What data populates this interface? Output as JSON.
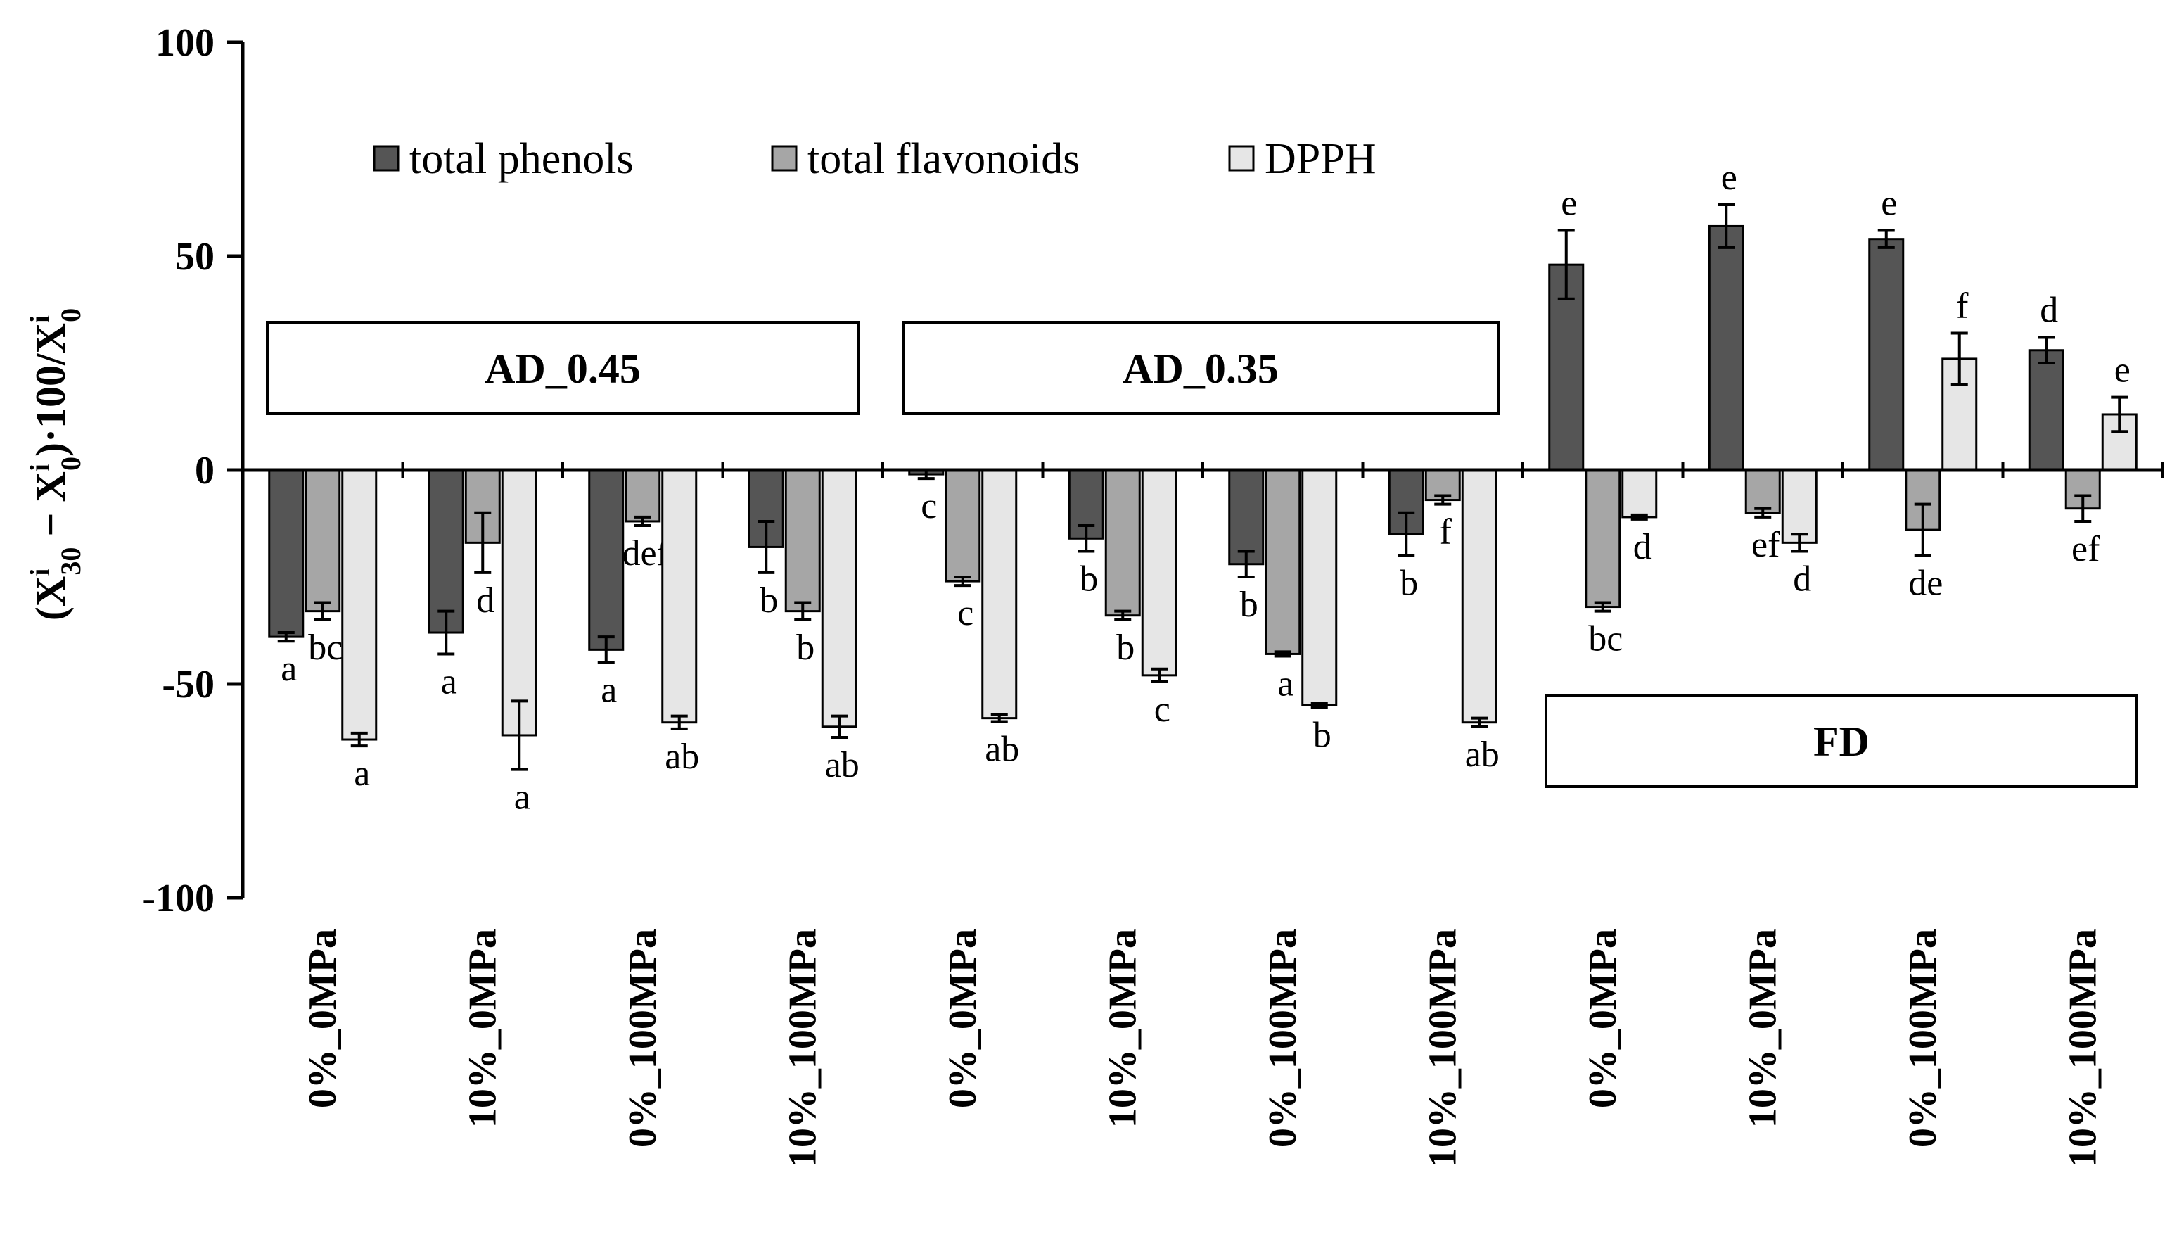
{
  "chart_data": {
    "type": "bar",
    "title": "",
    "xlabel": "",
    "ylabel": {
      "part1": "(X",
      "sup1": "i",
      "sub1": "30",
      "part2": " − X",
      "sup2": "i",
      "sub2": "0",
      "part3": ")·100/X",
      "sup3": "i",
      "sub3": "0"
    },
    "ylim": [
      -100,
      100
    ],
    "yticks": [
      100,
      50,
      0,
      -50,
      -100
    ],
    "ytick_labels": [
      "100",
      "50",
      "0",
      "-50",
      "-100"
    ],
    "categories": [
      "0%_0MPa",
      "10%_0MPa",
      "0%_100MPa",
      "10%_100MPa",
      "0%_0MPa",
      "10%_0MPa",
      "0%_100MPa",
      "10%_100MPa",
      "0%_0MPa",
      "10%_0MPa",
      "0%_100MPa",
      "10%_100MPa"
    ],
    "groups": [
      {
        "label": "AD_0.45",
        "categories": [
          0,
          1,
          2,
          3
        ]
      },
      {
        "label": "AD_0.35",
        "categories": [
          4,
          5,
          6,
          7
        ]
      },
      {
        "label": "FD",
        "categories": [
          8,
          9,
          10,
          11
        ]
      }
    ],
    "legend_position": "top",
    "series": [
      {
        "name": "total phenols",
        "color": "#555555",
        "values": [
          -39,
          -38,
          -42,
          -18,
          -1,
          -16,
          -22,
          -15,
          48,
          57,
          54,
          28
        ],
        "errors": [
          1,
          5,
          3,
          6,
          1,
          3,
          3,
          5,
          8,
          5,
          2,
          3
        ],
        "letters": [
          "a",
          "a",
          "a",
          "b",
          "c",
          "b",
          "b",
          "b",
          "e",
          "e",
          "e",
          "d"
        ]
      },
      {
        "name": "total flavonoids",
        "color": "#a6a6a6",
        "values": [
          -33,
          -17,
          -12,
          -33,
          -26,
          -34,
          -43,
          -7,
          -32,
          -10,
          -14,
          -9
        ],
        "errors": [
          2,
          7,
          1,
          2,
          1,
          1,
          0.5,
          1,
          1,
          1,
          6,
          3
        ],
        "letters": [
          "bc",
          "d",
          "def",
          "b",
          "c",
          "b",
          "a",
          "f",
          "bc",
          "ef",
          "de",
          "ef"
        ]
      },
      {
        "name": "DPPH",
        "color": "#e6e6e6",
        "values": [
          -63,
          -62,
          -59,
          -60,
          -58,
          -48,
          -55,
          -59,
          -11,
          -17,
          26,
          13
        ],
        "errors": [
          1.5,
          8,
          1.5,
          2.5,
          0.8,
          1.5,
          0.5,
          1,
          0.5,
          2,
          6,
          4
        ],
        "letters": [
          "a",
          "a",
          "ab",
          "ab",
          "ab",
          "c",
          "b",
          "ab",
          "d",
          "d",
          "f",
          "e"
        ]
      }
    ]
  }
}
